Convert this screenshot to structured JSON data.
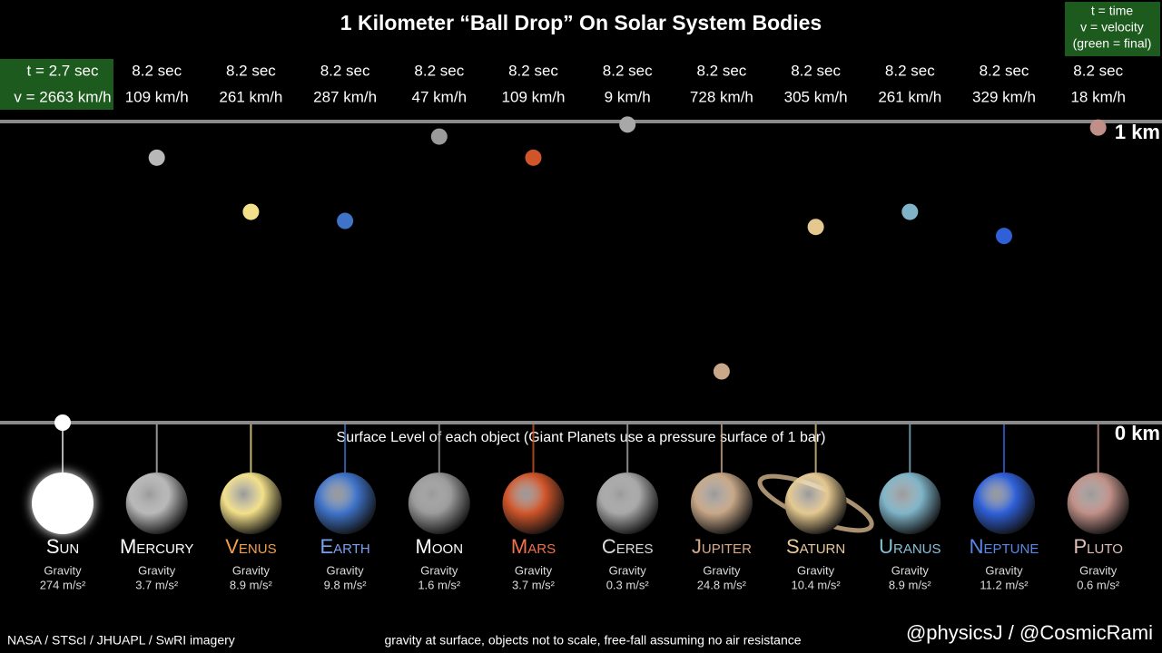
{
  "title": "1 Kilometer “Ball Drop” On Solar System Bodies",
  "legend": [
    "t = time",
    "v = velocity",
    "(green = final)"
  ],
  "axis": {
    "ylim": [
      0,
      1
    ],
    "ticks": [
      {
        "value": 1,
        "label": "1 km"
      },
      {
        "value": 0,
        "label": "0 km"
      }
    ]
  },
  "surface_note": "Surface Level of each object (Giant Planets use a pressure surface of 1 bar)",
  "bodies": [
    {
      "name": "Sun",
      "time": "t = 2.7 sec",
      "velocity": "v = 2663 km/h",
      "gravity_label": "Gravity",
      "gravity": "274 m/s²",
      "height_km": 0,
      "color": "#ffffff",
      "name_color": "#ffffff",
      "final": true
    },
    {
      "name": "Mercury",
      "time": "8.2 sec",
      "velocity": "109 km/h",
      "gravity_label": "Gravity",
      "gravity": "3.7 m/s²",
      "height_km": 0.88,
      "color": "#b8b8b8",
      "name_color": "#ffffff"
    },
    {
      "name": "Venus",
      "time": "8.2 sec",
      "velocity": "261 km/h",
      "gravity_label": "Gravity",
      "gravity": "8.9 m/s²",
      "height_km": 0.7,
      "color": "#f3e08a",
      "name_color": "#f0a050"
    },
    {
      "name": "Earth",
      "time": "8.2 sec",
      "velocity": "287 km/h",
      "gravity_label": "Gravity",
      "gravity": "9.8 m/s²",
      "height_km": 0.67,
      "color": "#3f73c8",
      "name_color": "#7aa0f0"
    },
    {
      "name": "Moon",
      "time": "8.2 sec",
      "velocity": "47 km/h",
      "gravity_label": "Gravity",
      "gravity": "1.6 m/s²",
      "height_km": 0.95,
      "color": "#9a9a9a",
      "name_color": "#ffffff"
    },
    {
      "name": "Mars",
      "time": "8.2 sec",
      "velocity": "109 km/h",
      "gravity_label": "Gravity",
      "gravity": "3.7 m/s²",
      "height_km": 0.88,
      "color": "#d0552a",
      "name_color": "#f07050"
    },
    {
      "name": "Ceres",
      "time": "8.2 sec",
      "velocity": "9 km/h",
      "gravity_label": "Gravity",
      "gravity": "0.3 m/s²",
      "height_km": 0.99,
      "color": "#a8a8a8",
      "name_color": "#dddddd"
    },
    {
      "name": "Jupiter",
      "time": "8.2 sec",
      "velocity": "728 km/h",
      "gravity_label": "Gravity",
      "gravity": "24.8 m/s²",
      "height_km": 0.17,
      "color": "#c8a888",
      "name_color": "#d8aa88"
    },
    {
      "name": "Saturn",
      "time": "8.2 sec",
      "velocity": "305 km/h",
      "gravity_label": "Gravity",
      "gravity": "10.4 m/s²",
      "height_km": 0.65,
      "color": "#e4c890",
      "name_color": "#e8c8a0"
    },
    {
      "name": "Uranus",
      "time": "8.2 sec",
      "velocity": "261 km/h",
      "gravity_label": "Gravity",
      "gravity": "8.9 m/s²",
      "height_km": 0.7,
      "color": "#7fb4c8",
      "name_color": "#88c0d8"
    },
    {
      "name": "Neptune",
      "time": "8.2 sec",
      "velocity": "329 km/h",
      "gravity_label": "Gravity",
      "gravity": "11.2 m/s²",
      "height_km": 0.62,
      "color": "#2f60d8",
      "name_color": "#5a88e8"
    },
    {
      "name": "Pluto",
      "time": "8.2 sec",
      "velocity": "18 km/h",
      "gravity_label": "Gravity",
      "gravity": "0.6 m/s²",
      "height_km": 0.98,
      "color": "#c09088",
      "name_color": "#e0c0b8"
    }
  ],
  "footer": {
    "credit": "NASA / STScI / JHUAPL / SwRI imagery",
    "note": "gravity at surface, objects not to scale, free-fall assuming no air resistance",
    "handle": "@physicsJ / @CosmicRami"
  }
}
